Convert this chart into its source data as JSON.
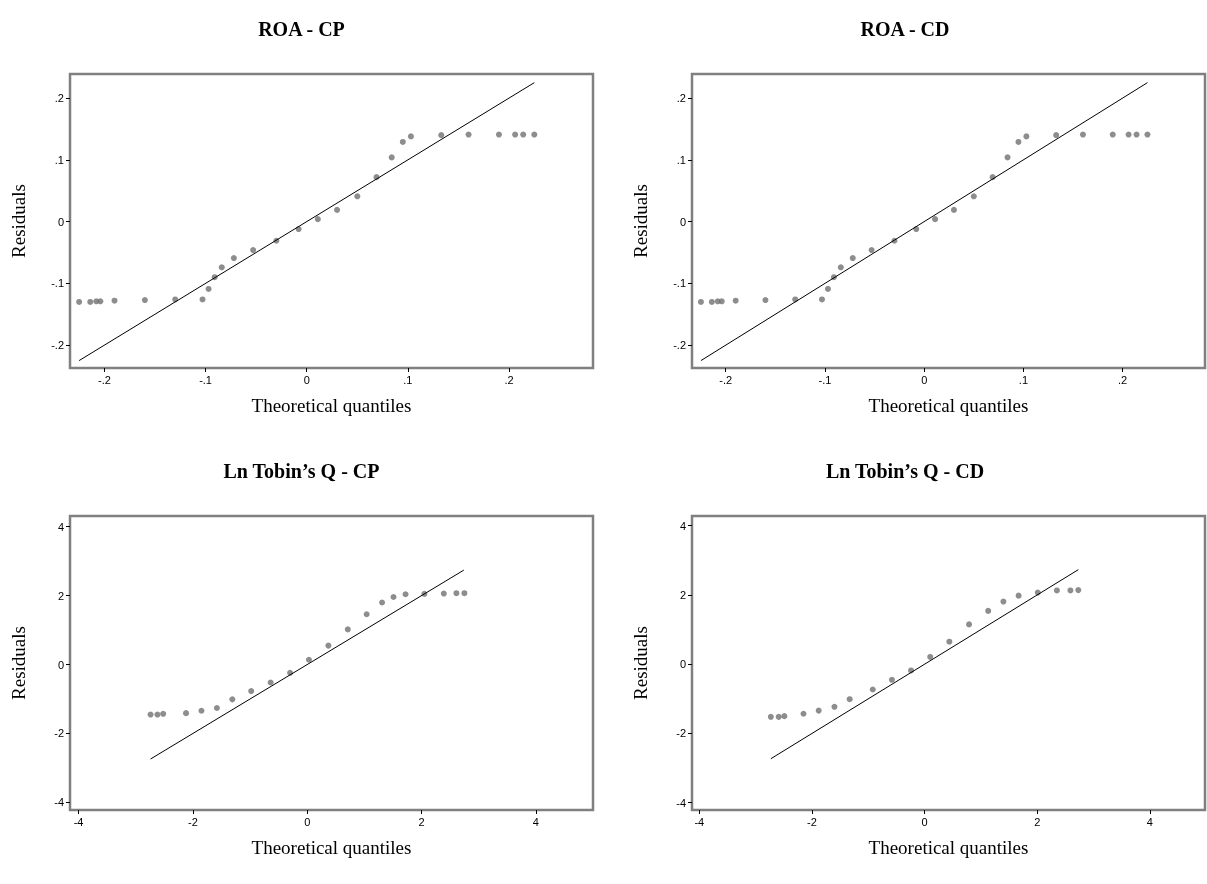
{
  "chart_data": [
    {
      "type": "scatter",
      "title": "ROA - CP",
      "xlabel": "Theoretical quantiles",
      "ylabel": "Residuals",
      "marker": "circle",
      "grid": false,
      "xlim": [
        -0.234,
        0.283
      ],
      "ylim": [
        -0.237,
        0.239
      ],
      "xticks": [
        {
          "value": -0.2,
          "label": "-.2"
        },
        {
          "value": -0.1,
          "label": "-.1"
        },
        0,
        {
          "value": 0.1,
          "label": ".1"
        },
        {
          "value": 0.2,
          "label": ".2"
        }
      ],
      "yticks": [
        {
          "value": -0.2,
          "label": "-.2"
        },
        {
          "value": -0.1,
          "label": "-.1"
        },
        0,
        {
          "value": 0.1,
          "label": ".1"
        },
        {
          "value": 0.2,
          "label": ".2"
        }
      ],
      "series": [
        {
          "color": "#707070",
          "x": [
            -0.225,
            -0.214,
            -0.208,
            -0.204,
            -0.19,
            -0.16,
            -0.13,
            -0.103,
            -0.097,
            -0.091,
            -0.084,
            -0.072,
            -0.053,
            -0.03,
            -0.008,
            0.011,
            0.03,
            0.05,
            0.069,
            0.084,
            0.095,
            0.103,
            0.133,
            0.16,
            0.19,
            0.206,
            0.214,
            0.225
          ],
          "values": [
            -0.13,
            -0.13,
            -0.129,
            -0.129,
            -0.128,
            -0.127,
            -0.126,
            -0.126,
            -0.109,
            -0.09,
            -0.074,
            -0.059,
            -0.046,
            -0.031,
            -0.012,
            0.004,
            0.019,
            0.041,
            0.072,
            0.104,
            0.129,
            0.138,
            0.14,
            0.141,
            0.141,
            0.141,
            0.141,
            0.141
          ]
        },
        {
          "type": "line",
          "marker": "none",
          "color": "#000000",
          "line_style": "solid",
          "x": [
            -0.225,
            0.225
          ],
          "values": [
            -0.225,
            0.225
          ]
        }
      ]
    },
    {
      "type": "scatter",
      "title": "ROA - CD",
      "xlabel": "Theoretical quantiles",
      "ylabel": "Residuals",
      "marker": "circle",
      "grid": false,
      "xlim": [
        -0.234,
        0.283
      ],
      "ylim": [
        -0.237,
        0.239
      ],
      "xticks": [
        {
          "value": -0.2,
          "label": "-.2"
        },
        {
          "value": -0.1,
          "label": "-.1"
        },
        0,
        {
          "value": 0.1,
          "label": ".1"
        },
        {
          "value": 0.2,
          "label": ".2"
        }
      ],
      "yticks": [
        {
          "value": -0.2,
          "label": "-.2"
        },
        {
          "value": -0.1,
          "label": "-.1"
        },
        0,
        {
          "value": 0.1,
          "label": ".1"
        },
        {
          "value": 0.2,
          "label": ".2"
        }
      ],
      "series": [
        {
          "color": "#707070",
          "x": [
            -0.225,
            -0.214,
            -0.208,
            -0.204,
            -0.19,
            -0.16,
            -0.13,
            -0.103,
            -0.097,
            -0.091,
            -0.084,
            -0.072,
            -0.053,
            -0.03,
            -0.008,
            0.011,
            0.03,
            0.05,
            0.069,
            0.084,
            0.095,
            0.103,
            0.133,
            0.16,
            0.19,
            0.206,
            0.214,
            0.225
          ],
          "values": [
            -0.13,
            -0.13,
            -0.129,
            -0.129,
            -0.128,
            -0.127,
            -0.126,
            -0.126,
            -0.109,
            -0.09,
            -0.074,
            -0.059,
            -0.046,
            -0.031,
            -0.012,
            0.004,
            0.019,
            0.041,
            0.072,
            0.104,
            0.129,
            0.138,
            0.14,
            0.141,
            0.141,
            0.141,
            0.141,
            0.141
          ]
        },
        {
          "type": "line",
          "marker": "none",
          "color": "#000000",
          "line_style": "solid",
          "x": [
            -0.225,
            0.225
          ],
          "values": [
            -0.225,
            0.225
          ]
        }
      ]
    },
    {
      "type": "scatter",
      "title": "Ln Tobin’s Q - CP",
      "xlabel": "Theoretical quantiles",
      "ylabel": "Residuals",
      "marker": "circle",
      "grid": false,
      "xlim": [
        -4.15,
        5
      ],
      "ylim": [
        -4.22,
        4.31
      ],
      "xticks": [
        -4,
        -2,
        0,
        2,
        4
      ],
      "yticks": [
        -4,
        -2,
        0,
        2,
        4
      ],
      "series": [
        {
          "color": "#707070",
          "x": [
            -2.74,
            -2.62,
            -2.52,
            -2.12,
            -1.85,
            -1.58,
            -1.31,
            -0.98,
            -0.64,
            -0.3,
            0.03,
            0.37,
            0.71,
            1.04,
            1.31,
            1.51,
            1.72,
            2.05,
            2.39,
            2.61,
            2.75
          ],
          "values": [
            -1.45,
            -1.45,
            -1.43,
            -1.41,
            -1.34,
            -1.26,
            -1.01,
            -0.77,
            -0.52,
            -0.24,
            0.14,
            0.55,
            1.02,
            1.46,
            1.8,
            1.96,
            2.04,
            2.05,
            2.06,
            2.07,
            2.07
          ]
        },
        {
          "type": "line",
          "marker": "none",
          "color": "#000000",
          "line_style": "solid",
          "x": [
            -2.74,
            2.74
          ],
          "values": [
            -2.74,
            2.74
          ]
        }
      ]
    },
    {
      "type": "scatter",
      "title": "Ln Tobin’s Q - CD",
      "xlabel": "Theoretical quantiles",
      "ylabel": "Residuals",
      "marker": "circle",
      "grid": false,
      "xlim": [
        -4.13,
        4.98
      ],
      "ylim": [
        -4.21,
        4.28
      ],
      "xticks": [
        -4,
        -2,
        0,
        2,
        4
      ],
      "yticks": [
        -4,
        -2,
        0,
        2,
        4
      ],
      "series": [
        {
          "color": "#707070",
          "x": [
            -2.73,
            -2.59,
            -2.49,
            -2.15,
            -1.88,
            -1.6,
            -1.33,
            -0.92,
            -0.58,
            -0.24,
            0.1,
            0.44,
            0.79,
            1.13,
            1.4,
            1.67,
            2.01,
            2.35,
            2.59,
            2.73
          ],
          "values": [
            -1.52,
            -1.52,
            -1.5,
            -1.43,
            -1.34,
            -1.23,
            -1.01,
            -0.73,
            -0.45,
            -0.18,
            0.21,
            0.65,
            1.15,
            1.54,
            1.81,
            1.98,
            2.07,
            2.13,
            2.13,
            2.14
          ]
        },
        {
          "type": "line",
          "marker": "none",
          "color": "#000000",
          "line_style": "solid",
          "x": [
            -2.73,
            2.73
          ],
          "values": [
            -2.73,
            2.73
          ]
        }
      ]
    }
  ]
}
